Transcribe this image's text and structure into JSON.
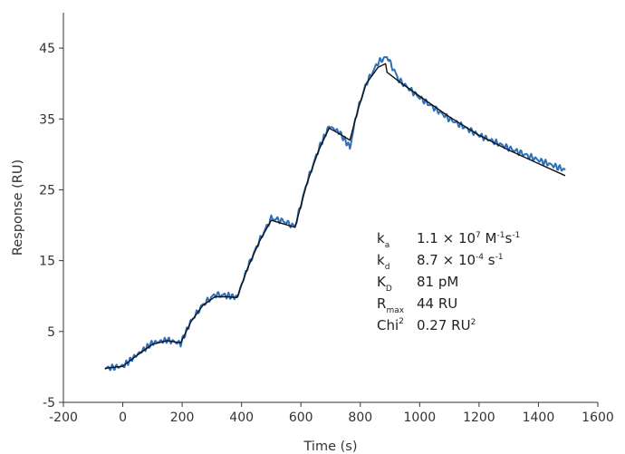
{
  "chart_data": {
    "type": "line",
    "xlabel": "Time (s)",
    "ylabel": "Response (RU)",
    "xlim": [
      -200,
      1600
    ],
    "ylim": [
      -5,
      50
    ],
    "x_ticks": [
      -200,
      0,
      200,
      400,
      600,
      800,
      1000,
      1200,
      1400,
      1600
    ],
    "y_ticks": [
      -5,
      5,
      15,
      25,
      35,
      45
    ],
    "grid": false,
    "colors": {
      "measured": "#2f6fb8",
      "fit": "#111111"
    },
    "series": [
      {
        "style": "measured",
        "x": [
          -60,
          0,
          50,
          100,
          150,
          195,
          230,
          270,
          310,
          350,
          385,
          420,
          460,
          500,
          540,
          580,
          620,
          660,
          695,
          730,
          765,
          790,
          820,
          860,
          890,
          930,
          1000,
          1100,
          1200,
          1300,
          1400,
          1490
        ],
        "y": [
          -0.2,
          0.1,
          1.8,
          3.4,
          3.8,
          3.3,
          6.5,
          8.8,
          10.2,
          10.1,
          9.8,
          14.0,
          17.8,
          21.0,
          20.6,
          19.8,
          26.0,
          30.8,
          34.0,
          33.1,
          31.0,
          36.2,
          40.0,
          43.0,
          43.8,
          40.5,
          38.0,
          35.0,
          32.7,
          30.9,
          29.2,
          27.8
        ]
      },
      {
        "style": "fit",
        "x": [
          -60,
          0,
          50,
          100,
          150,
          195,
          230,
          270,
          310,
          350,
          385,
          420,
          460,
          500,
          540,
          580,
          620,
          660,
          695,
          730,
          765,
          790,
          820,
          860,
          885,
          890,
          930,
          1000,
          1100,
          1200,
          1300,
          1400,
          1490
        ],
        "y": [
          -0.2,
          0.1,
          1.7,
          3.2,
          3.7,
          3.4,
          6.4,
          8.7,
          9.9,
          9.9,
          9.8,
          13.9,
          17.7,
          20.7,
          20.2,
          19.7,
          25.9,
          30.6,
          33.7,
          32.9,
          32.0,
          36.0,
          40.0,
          42.3,
          42.8,
          41.6,
          40.3,
          38.2,
          35.3,
          32.7,
          30.6,
          28.7,
          27.0
        ]
      }
    ],
    "annotations": [
      {
        "symbol": "k",
        "sub": "a",
        "value_parts": [
          {
            "t": "1.1 × 10"
          },
          {
            "t": "7",
            "sup": true
          },
          {
            "t": " M"
          },
          {
            "t": "-1",
            "sup": true
          },
          {
            "t": "s"
          },
          {
            "t": "-1",
            "sup": true
          }
        ]
      },
      {
        "symbol": "k",
        "sub": "d",
        "value_parts": [
          {
            "t": "8.7 × 10"
          },
          {
            "t": "-4",
            "sup": true
          },
          {
            "t": " s"
          },
          {
            "t": "-1",
            "sup": true
          }
        ]
      },
      {
        "symbol": "K",
        "sub": "D",
        "value_parts": [
          {
            "t": "81 pM"
          }
        ]
      },
      {
        "symbol": "R",
        "sub": "max",
        "value_parts": [
          {
            "t": "44 RU"
          }
        ]
      },
      {
        "symbol": "Chi",
        "sup": "2",
        "value_parts": [
          {
            "t": "0.27 RU"
          },
          {
            "t": "2",
            "sup": true
          }
        ]
      }
    ]
  }
}
